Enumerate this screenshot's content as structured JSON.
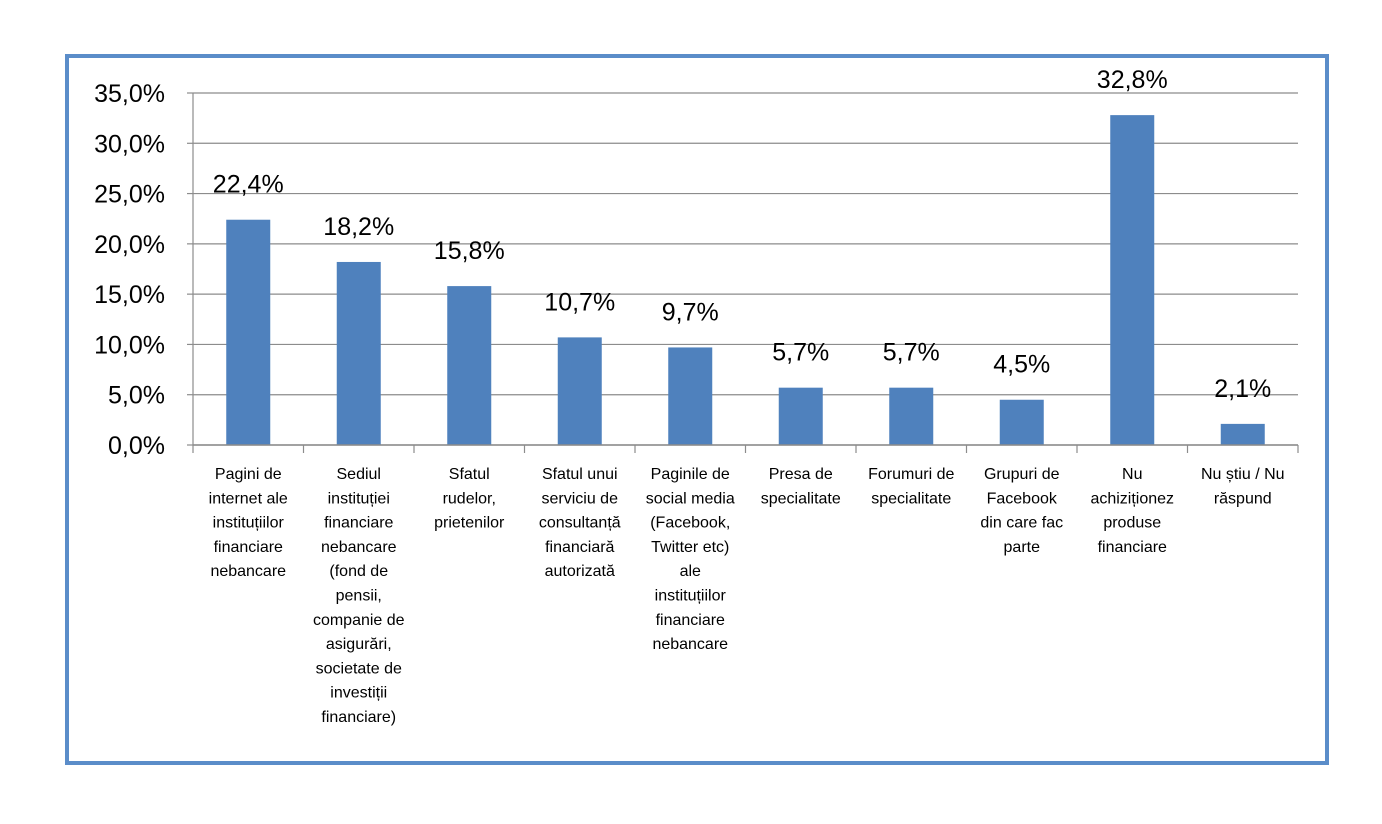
{
  "chart_data": {
    "type": "bar",
    "categories": [
      [
        "Pagini de",
        "internet  ale",
        "instituțiilor",
        "financiare",
        "nebancare"
      ],
      [
        "Sediul",
        "instituției",
        "financiare",
        "nebancare",
        "(fond  de",
        "pensii,",
        "companie de",
        "asigurări,",
        "societate de",
        "investiții",
        "financiare)"
      ],
      [
        "Sfatul",
        "rudelor,",
        "prietenilor"
      ],
      [
        "Sfatul unui",
        "serviciu de",
        "consultanță",
        "financiară",
        "autorizată"
      ],
      [
        "Paginile  de",
        "social media",
        "(Facebook,",
        "Twitter etc)",
        "ale",
        "instituțiilor",
        "financiare",
        "nebancare"
      ],
      [
        "Presa de",
        "specialitate"
      ],
      [
        "Forumuri de",
        "specialitate"
      ],
      [
        "Grupuri  de",
        "Facebook",
        "din  care fac",
        "parte"
      ],
      [
        "Nu",
        "achiziționez",
        "produse",
        "financiare"
      ],
      [
        "Nu știu / Nu",
        "răspund"
      ]
    ],
    "values": [
      22.4,
      18.2,
      15.8,
      10.7,
      9.7,
      5.7,
      5.7,
      4.5,
      32.8,
      2.1
    ],
    "data_labels": [
      "22,4%",
      "18,2%",
      "15,8%",
      "10,7%",
      "9,7%",
      "5,7%",
      "5,7%",
      "4,5%",
      "32,8%",
      "2,1%"
    ],
    "y_ticks": [
      "0,0%",
      "5,0%",
      "10,0%",
      "15,0%",
      "20,0%",
      "25,0%",
      "30,0%",
      "35,0%"
    ],
    "ylim": [
      0,
      35
    ],
    "grid": true,
    "bar_color": "#4f81bd",
    "grid_color": "#8c8c8c",
    "frame_color": "#5b8dc9"
  }
}
